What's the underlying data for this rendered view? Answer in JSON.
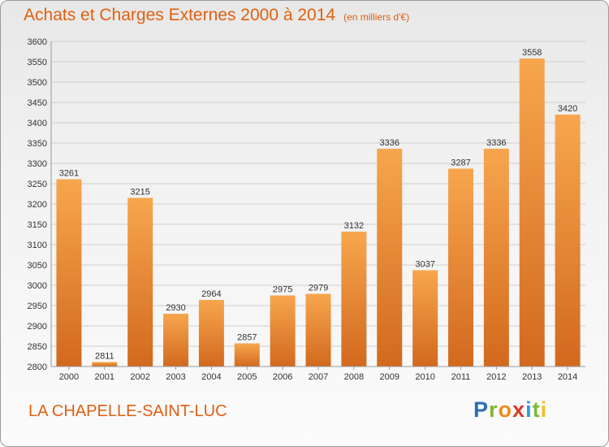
{
  "title": "Achats et Charges Externes 2000 à 2014",
  "unit": "(en milliers d'€)",
  "commune": "LA CHAPELLE-SAINT-LUC",
  "logo": {
    "letters": [
      "P",
      "r",
      "o",
      "x",
      "i",
      "t",
      "i"
    ],
    "colors": [
      "#2e6db4",
      "#7cb833",
      "#f08a1c",
      "#d83a2a",
      "#2e9bd6",
      "#7cb833",
      "#f0c020"
    ]
  },
  "colors": {
    "bar_top": "#f7a64e",
    "bar_bottom": "#d2691e",
    "title": "#e06010",
    "grid": "#cfcfcf"
  },
  "chart_data": {
    "type": "bar",
    "categories": [
      "2000",
      "2001",
      "2002",
      "2003",
      "2004",
      "2005",
      "2006",
      "2007",
      "2008",
      "2009",
      "2010",
      "2011",
      "2012",
      "2013",
      "2014"
    ],
    "values": [
      3261,
      2811,
      3215,
      2930,
      2964,
      2857,
      2975,
      2979,
      3132,
      3336,
      3037,
      3287,
      3336,
      3558,
      3420
    ],
    "yticks": [
      "2800",
      "2850",
      "2900",
      "2950",
      "3000",
      "3050",
      "3100",
      "3150",
      "3200",
      "3250",
      "3300",
      "3350",
      "3400",
      "3450",
      "3500",
      "3550",
      "3600"
    ],
    "ylim": [
      2800,
      3600
    ],
    "grid": true
  }
}
